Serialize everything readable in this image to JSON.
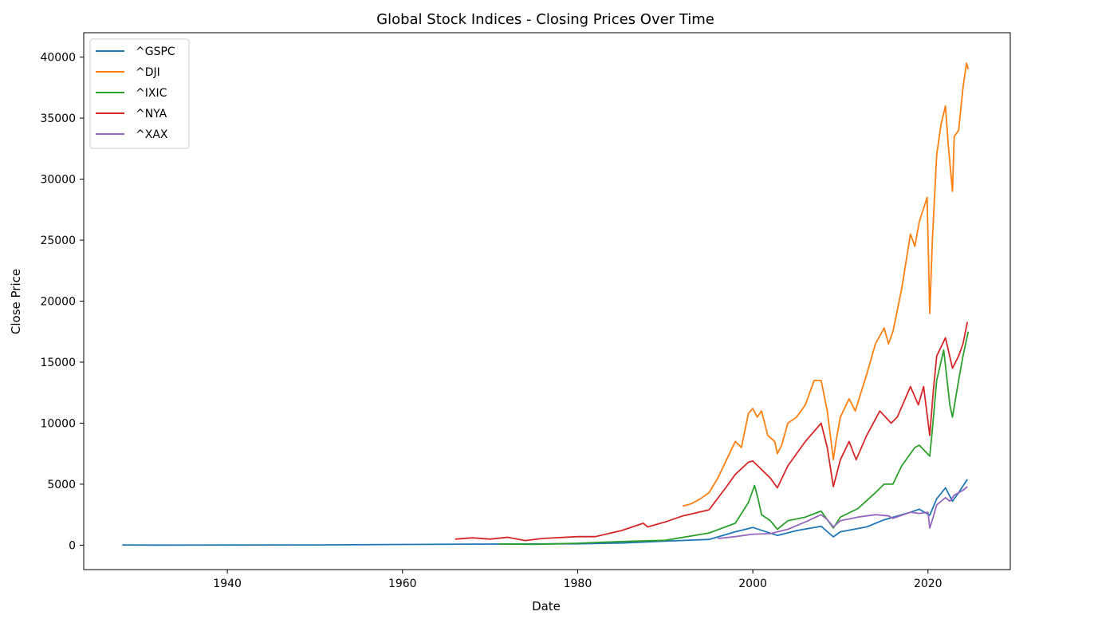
{
  "chart_data": {
    "type": "line",
    "title": "Global Stock Indices - Closing Prices Over Time",
    "xlabel": "Date",
    "ylabel": "Close Price",
    "xlim": [
      1923.6,
      2029.4
    ],
    "ylim": [
      -2000,
      42000
    ],
    "x_ticks": [
      1940,
      1960,
      1980,
      2000,
      2020
    ],
    "x_tick_labels": [
      "1940",
      "1960",
      "1980",
      "2000",
      "2020"
    ],
    "y_ticks": [
      0,
      5000,
      10000,
      15000,
      20000,
      25000,
      30000,
      35000,
      40000
    ],
    "y_tick_labels": [
      "0",
      "5000",
      "10000",
      "15000",
      "20000",
      "25000",
      "30000",
      "35000",
      "40000"
    ],
    "grid": false,
    "legend_position": "top-left",
    "series": [
      {
        "name": "^GSPC",
        "color": "#1f77b4",
        "x": [
          1928,
          1932,
          1940,
          1950,
          1960,
          1970,
          1980,
          1985,
          1990,
          1995,
          1998,
          2000,
          2002.8,
          2005,
          2007.8,
          2009.2,
          2010,
          2013,
          2015,
          2018,
          2019,
          2020.2,
          2021,
          2022,
          2022.8,
          2023.5,
          2024.5
        ],
        "y": [
          17,
          8,
          12,
          17,
          58,
          92,
          114,
          180,
          330,
          470,
          1100,
          1450,
          800,
          1200,
          1550,
          680,
          1100,
          1500,
          2080,
          2700,
          2950,
          2450,
          3800,
          4700,
          3600,
          4300,
          5400
        ]
      },
      {
        "name": "^DJI",
        "color": "#ff7f0e",
        "x": [
          1992,
          1993,
          1994,
          1995,
          1996,
          1997,
          1998,
          1998.7,
          1999.5,
          2000,
          2000.5,
          2001,
          2001.7,
          2002.5,
          2002.8,
          2003.3,
          2004,
          2005,
          2006,
          2007,
          2007.8,
          2008.5,
          2009.2,
          2009.5,
          2010,
          2011,
          2011.7,
          2013,
          2014,
          2015,
          2015.5,
          2016,
          2017,
          2018,
          2018.5,
          2019,
          2019.9,
          2020.2,
          2020.5,
          2021,
          2021.5,
          2022,
          2022.3,
          2022.8,
          2023,
          2023.5,
          2024,
          2024.4,
          2024.6
        ],
        "y": [
          3200,
          3400,
          3800,
          4300,
          5500,
          7000,
          8500,
          8000,
          10800,
          11200,
          10500,
          11000,
          9000,
          8500,
          7500,
          8200,
          10000,
          10500,
          11500,
          13500,
          13500,
          11000,
          7000,
          8500,
          10500,
          12000,
          11000,
          14000,
          16500,
          17800,
          16500,
          17500,
          21000,
          25500,
          24500,
          26500,
          28500,
          19000,
          25000,
          32000,
          34500,
          36000,
          33000,
          29000,
          33500,
          34000,
          37500,
          39500,
          39000
        ]
      },
      {
        "name": "^IXIC",
        "color": "#2ca02c",
        "x": [
          1971,
          1975,
          1980,
          1985,
          1990,
          1995,
          1998,
          1999.5,
          2000.2,
          2000.6,
          2001,
          2002,
          2002.8,
          2004,
          2006,
          2007.8,
          2009.2,
          2010,
          2012,
          2014,
          2015,
          2016,
          2017,
          2018.5,
          2019,
          2020.2,
          2020.5,
          2021,
          2021.8,
          2022.5,
          2022.8,
          2023.5,
          2024,
          2024.6
        ],
        "y": [
          100,
          75,
          160,
          300,
          400,
          1000,
          1800,
          3500,
          4900,
          3800,
          2500,
          2000,
          1300,
          2000,
          2300,
          2800,
          1400,
          2300,
          3000,
          4300,
          5000,
          5000,
          6500,
          8000,
          8200,
          7300,
          9500,
          13500,
          16000,
          11500,
          10500,
          13500,
          15500,
          17500
        ]
      },
      {
        "name": "^NYA",
        "color": "#d62728",
        "x": [
          1966,
          1968,
          1970,
          1972,
          1974,
          1976,
          1980,
          1982,
          1985,
          1987.5,
          1988,
          1990,
          1992,
          1995,
          1997,
          1998,
          1999.5,
          2000,
          2001,
          2002,
          2002.8,
          2004,
          2006,
          2007.8,
          2008.5,
          2009.2,
          2010,
          2011,
          2011.8,
          2013,
          2014.5,
          2015.8,
          2016.5,
          2018,
          2018.9,
          2019.5,
          2020.2,
          2020.6,
          2021,
          2022,
          2022.8,
          2023.5,
          2024,
          2024.5
        ],
        "y": [
          500,
          600,
          500,
          650,
          380,
          550,
          700,
          700,
          1200,
          1800,
          1500,
          1900,
          2400,
          2900,
          4800,
          5800,
          6800,
          6900,
          6200,
          5500,
          4700,
          6500,
          8500,
          10000,
          8000,
          4800,
          7000,
          8500,
          7000,
          9000,
          11000,
          10000,
          10500,
          13000,
          11500,
          13000,
          9000,
          12500,
          15500,
          17000,
          14500,
          15500,
          16500,
          18300
        ]
      },
      {
        "name": "^XAX",
        "color": "#9467bd",
        "x": [
          1996,
          1998,
          2000,
          2002,
          2004,
          2006,
          2007.8,
          2008.5,
          2009.2,
          2010,
          2012,
          2014,
          2015.5,
          2016,
          2018,
          2019,
          2020,
          2020.2,
          2020.6,
          2021,
          2022,
          2022.5,
          2023,
          2024,
          2024.5
        ],
        "y": [
          550,
          700,
          900,
          950,
          1300,
          1900,
          2500,
          2100,
          1500,
          2000,
          2300,
          2500,
          2400,
          2200,
          2700,
          2600,
          2700,
          1400,
          2300,
          3300,
          3900,
          3600,
          4100,
          4500,
          4800
        ]
      }
    ]
  }
}
